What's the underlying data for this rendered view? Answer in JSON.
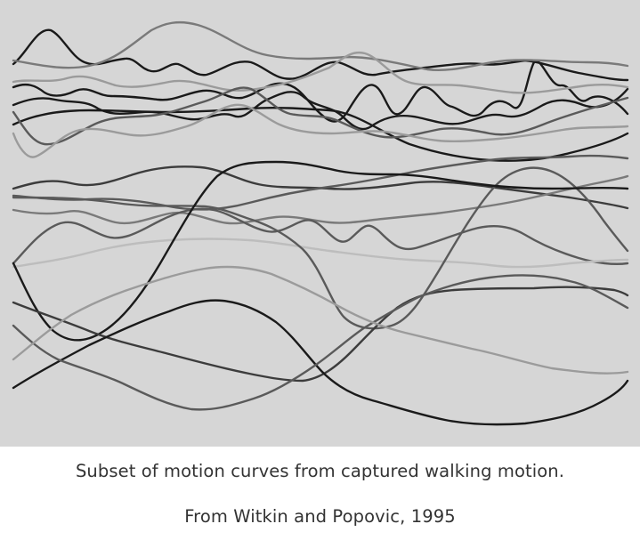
{
  "figure": {
    "background_color": "#d6d6d6",
    "curve_colors": [
      "#1a1a1a",
      "#3c3c3c",
      "#5a5a5a",
      "#7a7a7a",
      "#9b9b9b",
      "#bdbdbd"
    ],
    "caption_line1": "Subset of motion curves from captured walking motion.",
    "caption_line2": "From Witkin and Popovic, 1995"
  }
}
